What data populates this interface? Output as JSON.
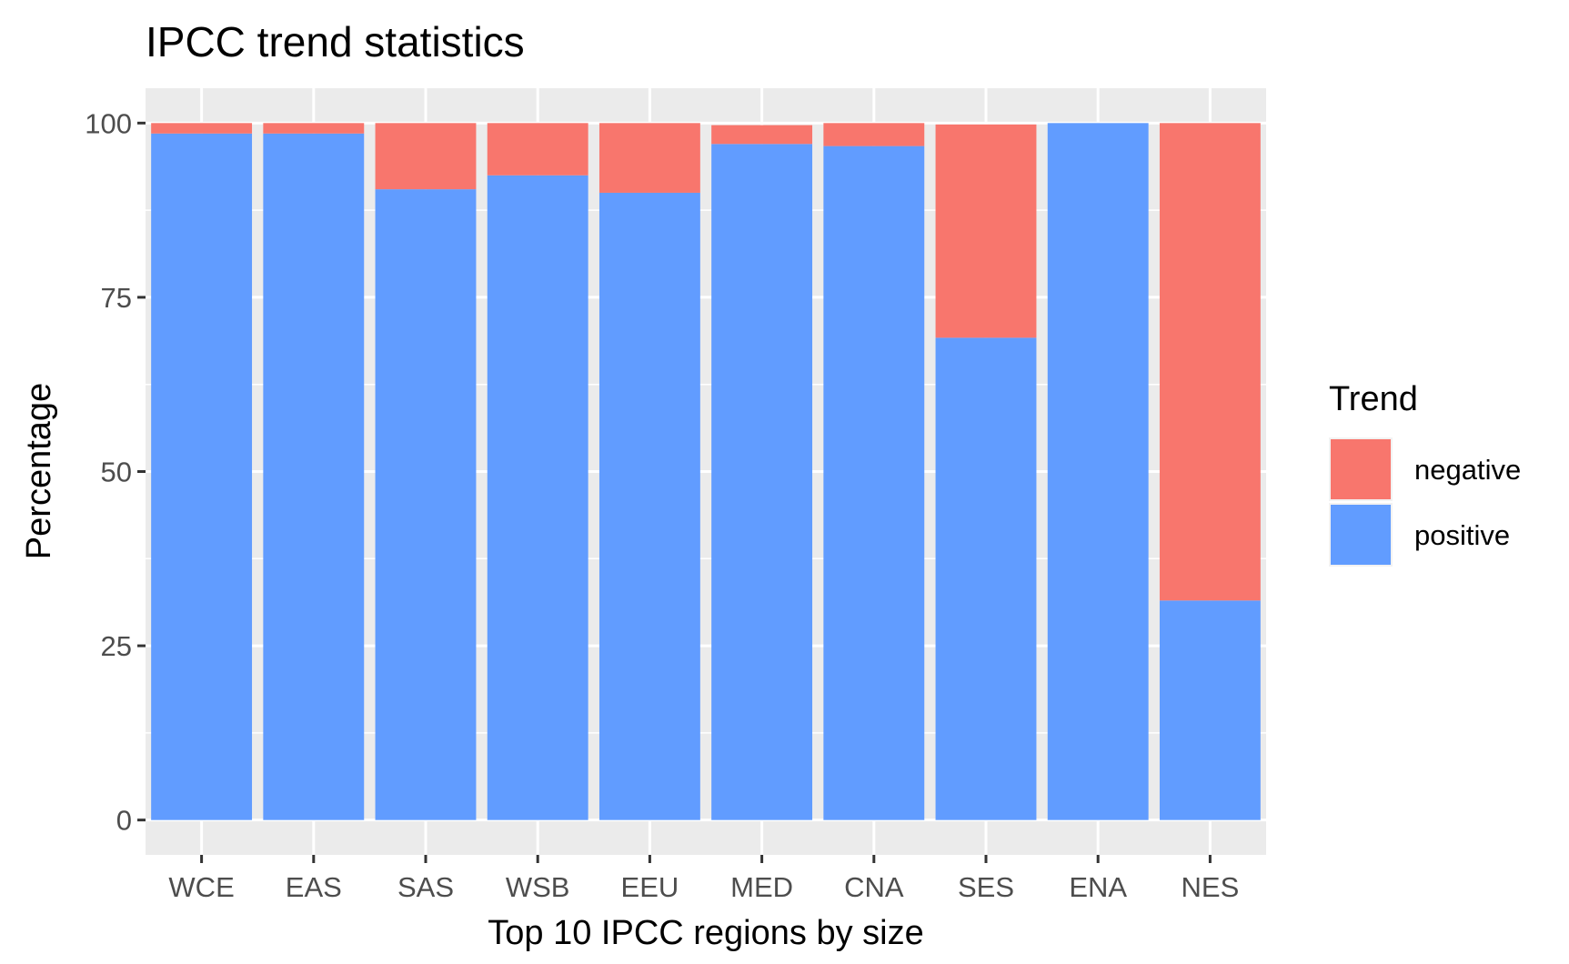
{
  "chart_data": {
    "type": "bar",
    "stacked": true,
    "title": "IPCC trend statistics",
    "xlabel": "Top 10 IPCC regions by size",
    "ylabel": "Percentage",
    "categories": [
      "WCE",
      "EAS",
      "SAS",
      "WSB",
      "EEU",
      "MED",
      "CNA",
      "SES",
      "ENA",
      "NES"
    ],
    "series": [
      {
        "name": "positive",
        "color": "#619CFF",
        "values": [
          98.5,
          98.5,
          90.5,
          92.5,
          90.0,
          97.0,
          96.7,
          69.2,
          100.0,
          31.5
        ]
      },
      {
        "name": "negative",
        "color": "#F8766D",
        "values": [
          1.5,
          1.5,
          9.5,
          7.5,
          10.0,
          2.7,
          3.3,
          30.6,
          0.0,
          68.5
        ]
      }
    ],
    "ylim": [
      -5,
      105
    ],
    "yticks": [
      0,
      25,
      50,
      75,
      100
    ],
    "grid": true,
    "legend": {
      "title": "Trend",
      "placement": "right",
      "items": [
        {
          "label": "negative",
          "color": "#F8766D"
        },
        {
          "label": "positive",
          "color": "#619CFF"
        }
      ]
    },
    "panel_background": "#EBEBEB",
    "grid_color": "#FFFFFF"
  }
}
